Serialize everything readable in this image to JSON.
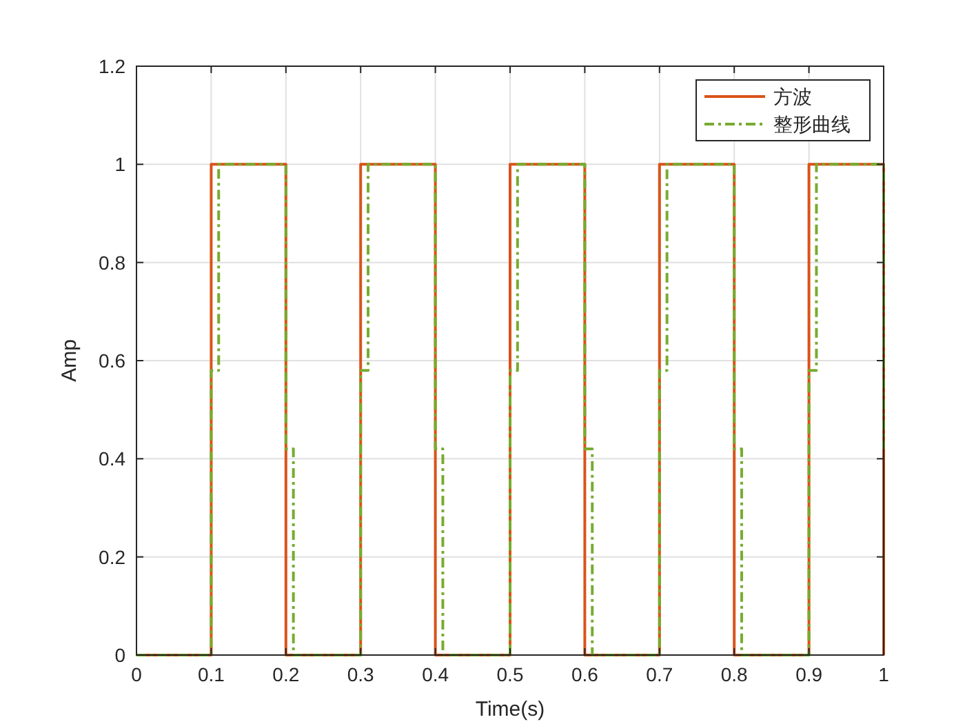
{
  "chart_data": {
    "type": "step",
    "xlabel": "Time(s)",
    "ylabel": "Amp",
    "xlim": [
      0,
      1
    ],
    "xticks": [
      0,
      0.1,
      0.2,
      0.3,
      0.4,
      0.5,
      0.6,
      0.7,
      0.8,
      0.9,
      1
    ],
    "ylim": [
      0,
      1.2
    ],
    "yticks": [
      0,
      0.2,
      0.4,
      0.6,
      0.8,
      1,
      1.2
    ],
    "grid": true,
    "legend": "top right",
    "series": [
      {
        "name": "方波",
        "color": "#d95319",
        "line_style": "solid",
        "x": [
          0,
          0.1,
          0.2,
          0.3,
          0.4,
          0.5,
          0.6,
          0.7,
          0.8,
          0.9,
          1
        ],
        "values": [
          0,
          1,
          0,
          1,
          0,
          1,
          0,
          1,
          0,
          1,
          0
        ]
      },
      {
        "name": "整形曲线",
        "color": "#77ac30",
        "line_style": "dashed",
        "x": [
          0,
          0.1,
          0.11,
          0.2,
          0.21,
          0.3,
          0.31,
          0.4,
          0.41,
          0.5,
          0.51,
          0.6,
          0.61,
          0.7,
          0.71,
          0.8,
          0.81,
          0.9,
          0.91,
          1
        ],
        "values": [
          0,
          0.58,
          1,
          0.42,
          0,
          0.58,
          1,
          0.42,
          0,
          0.58,
          1,
          0.42,
          0,
          0.58,
          1,
          0.42,
          0,
          0.58,
          1,
          0.42
        ]
      }
    ]
  }
}
